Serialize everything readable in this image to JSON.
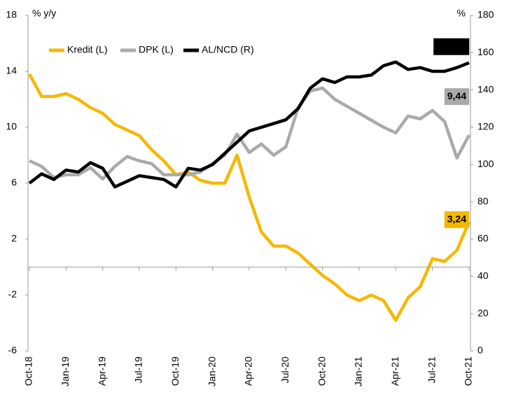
{
  "chart_data": {
    "type": "line",
    "y_label": "% y/y",
    "y2_label": "%",
    "categories": [
      "Oct-18",
      null,
      null,
      "Jan-19",
      null,
      null,
      "Apr-19",
      null,
      null,
      "Jul-19",
      null,
      null,
      "Oct-19",
      null,
      null,
      "Jan-20",
      null,
      null,
      "Apr-20",
      null,
      null,
      "Jul-20",
      null,
      null,
      "Oct-20",
      null,
      null,
      "Jan-21",
      null,
      null,
      "Apr-21",
      null,
      null,
      "Jul-21",
      null,
      null,
      "Oct-21"
    ],
    "series": [
      {
        "name": "Kredit (L)",
        "color": "#f5b800",
        "axis": "y",
        "values": [
          13.8,
          12.2,
          12.2,
          12.4,
          12.0,
          11.4,
          11.0,
          10.2,
          9.8,
          9.4,
          8.4,
          7.6,
          6.6,
          6.8,
          6.2,
          6.0,
          6.0,
          8.0,
          5.0,
          2.5,
          1.5,
          1.5,
          1.0,
          0.2,
          -0.6,
          -1.2,
          -2.0,
          -2.4,
          -2.0,
          -2.4,
          -3.8,
          -2.2,
          -1.4,
          0.6,
          0.4,
          1.2,
          3.24
        ],
        "value_labels": [
          null,
          null,
          null,
          null,
          null,
          null,
          null,
          null,
          null,
          null,
          null,
          null,
          null,
          null,
          null,
          null,
          null,
          null,
          null,
          null,
          null,
          null,
          null,
          null,
          null,
          null,
          null,
          null,
          null,
          null,
          null,
          null,
          null,
          null,
          null,
          null,
          "3,24"
        ]
      },
      {
        "name": "DPK (L)",
        "color": "#aaaaaa",
        "axis": "y",
        "values": [
          7.6,
          7.2,
          6.4,
          6.6,
          6.6,
          7.1,
          6.3,
          7.2,
          7.9,
          7.6,
          7.4,
          6.6,
          6.6,
          6.6,
          6.8,
          7.4,
          8.0,
          9.5,
          8.2,
          8.8,
          8.0,
          8.6,
          11.4,
          12.6,
          12.8,
          12.0,
          11.5,
          11.0,
          10.5,
          10.0,
          9.6,
          10.8,
          10.6,
          11.2,
          10.4,
          7.8,
          9.44
        ],
        "value_labels": [
          null,
          null,
          null,
          null,
          null,
          null,
          null,
          null,
          null,
          null,
          null,
          null,
          null,
          null,
          null,
          null,
          null,
          null,
          null,
          null,
          null,
          null,
          null,
          null,
          null,
          null,
          null,
          null,
          null,
          null,
          null,
          null,
          null,
          null,
          null,
          null,
          "9,44"
        ]
      },
      {
        "name": "AL/NCD (R)",
        "color": "#000000",
        "axis": "y2",
        "values": [
          90,
          95,
          92,
          97,
          96,
          101,
          98,
          88,
          91,
          94,
          93,
          92,
          88,
          98,
          97,
          100,
          106,
          112,
          118,
          120,
          122,
          124,
          130,
          141,
          146,
          144,
          147,
          147,
          148,
          153,
          155,
          151,
          152,
          150,
          150,
          152,
          154.59
        ],
        "value_labels": [
          null,
          null,
          null,
          null,
          null,
          null,
          null,
          null,
          null,
          null,
          null,
          null,
          null,
          null,
          null,
          null,
          null,
          null,
          null,
          null,
          null,
          null,
          null,
          null,
          null,
          null,
          null,
          null,
          null,
          null,
          null,
          null,
          null,
          null,
          null,
          null,
          "154,59"
        ]
      }
    ],
    "ylim": [
      -6,
      18
    ],
    "yticks": [
      -6,
      -2,
      2,
      6,
      10,
      14,
      18
    ],
    "y2lim": [
      0,
      180
    ],
    "y2ticks": [
      0,
      20,
      40,
      60,
      80,
      100,
      120,
      140,
      160,
      180
    ],
    "zero_line": true,
    "legend": "top-left"
  }
}
